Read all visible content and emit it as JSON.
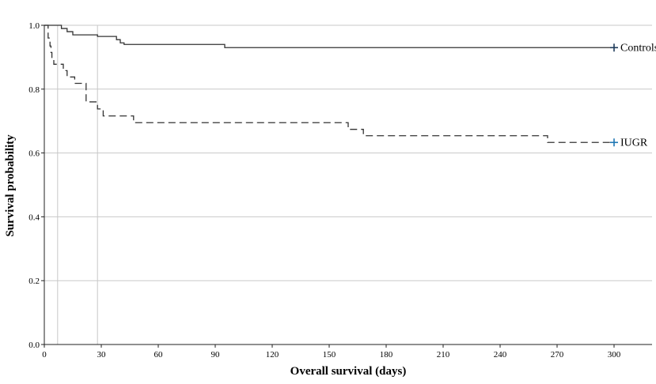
{
  "chart_data": {
    "type": "line",
    "subtype": "kaplan-meier",
    "title": "",
    "xlabel": "Overall survival (days)",
    "ylabel": "Survival probability",
    "xlim": [
      0,
      320
    ],
    "ylim": [
      0,
      1.0
    ],
    "x_ticks": [
      0,
      30,
      60,
      90,
      120,
      150,
      180,
      210,
      240,
      270,
      300
    ],
    "y_ticks": [
      0.0,
      0.2,
      0.4,
      0.6,
      0.8,
      1.0
    ],
    "x_tick_labels": [
      "0",
      "30",
      "60",
      "90",
      "120",
      "150",
      "180",
      "210",
      "240",
      "270",
      "300"
    ],
    "y_tick_labels": [
      "0.0",
      "0.2",
      "0.4",
      "0.6",
      "0.8",
      "1.0"
    ],
    "horizontal_grid": true,
    "reference_lines_x": [
      7,
      28
    ],
    "series": [
      {
        "name": "Controls",
        "line_style": "solid",
        "censor_color": "#1f3b5a",
        "steps": [
          [
            0,
            1.0
          ],
          [
            9,
            0.99
          ],
          [
            12,
            0.98
          ],
          [
            15,
            0.97
          ],
          [
            28,
            0.965
          ],
          [
            38,
            0.955
          ],
          [
            40,
            0.945
          ],
          [
            42,
            0.94
          ],
          [
            95,
            0.93
          ],
          [
            300,
            0.93
          ]
        ],
        "censor_points": [
          [
            300,
            0.93
          ]
        ]
      },
      {
        "name": "IUGR",
        "line_style": "dashed",
        "censor_color": "#1f77b4",
        "steps": [
          [
            0,
            1.0
          ],
          [
            2,
            0.96
          ],
          [
            3,
            0.935
          ],
          [
            3.5,
            0.915
          ],
          [
            4,
            0.895
          ],
          [
            5,
            0.878
          ],
          [
            10,
            0.858
          ],
          [
            12,
            0.838
          ],
          [
            16,
            0.818
          ],
          [
            22,
            0.76
          ],
          [
            28,
            0.738
          ],
          [
            31,
            0.716
          ],
          [
            47,
            0.695
          ],
          [
            160,
            0.674
          ],
          [
            168,
            0.654
          ],
          [
            265,
            0.633
          ],
          [
            300,
            0.633
          ]
        ],
        "censor_points": [
          [
            300,
            0.633
          ]
        ]
      }
    ]
  }
}
